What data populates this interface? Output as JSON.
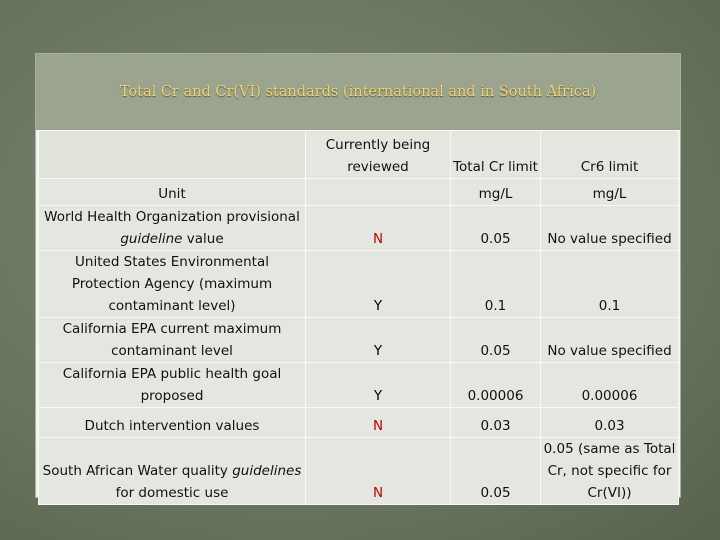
{
  "title": "Total Cr and Cr(VI) standards (international and in South Africa)",
  "table": {
    "columns": [
      "Currently being reviewed",
      "Total Cr limit",
      "Cr6 limit"
    ],
    "units": {
      "label": "Unit",
      "total_cr": "mg/L",
      "cr6": "mg/L"
    },
    "rows": [
      {
        "label": [
          {
            "text": "World Health Organization provisional "
          },
          {
            "text": "guideline",
            "italic": true
          },
          {
            "text": " value"
          }
        ],
        "reviewed": "N",
        "color": "#c00000",
        "total_cr": "0.05",
        "cr6": "No value specified"
      },
      {
        "label": [
          {
            "text": "United States Environmental Protection Agency (maximum contaminant level)"
          }
        ],
        "reviewed": "Y",
        "color": "#000000",
        "total_cr": "0.1",
        "cr6": "0.1"
      },
      {
        "label": [
          {
            "text": "California EPA current maximum contaminant level"
          }
        ],
        "reviewed": "Y",
        "color": "#000000",
        "total_cr": "0.05",
        "cr6": "No value specified"
      },
      {
        "label": [
          {
            "text": "California EPA public health goal proposed"
          }
        ],
        "reviewed": "Y",
        "color": "#000000",
        "total_cr": "0.00006",
        "cr6": "0.00006"
      },
      {
        "label": [
          {
            "text": "Dutch intervention values"
          }
        ],
        "reviewed": "N",
        "color": "#c00000",
        "total_cr": "0.03",
        "cr6": "0.03"
      },
      {
        "label": [
          {
            "text": "South African Water quality "
          },
          {
            "text": "guidelines",
            "italic": true
          },
          {
            "text": " for domestic use"
          }
        ],
        "reviewed": "N",
        "color": "#c00000",
        "total_cr": "0.05",
        "cr6": "0.05 (same as Total Cr, not specific for Cr(VI))"
      }
    ]
  }
}
